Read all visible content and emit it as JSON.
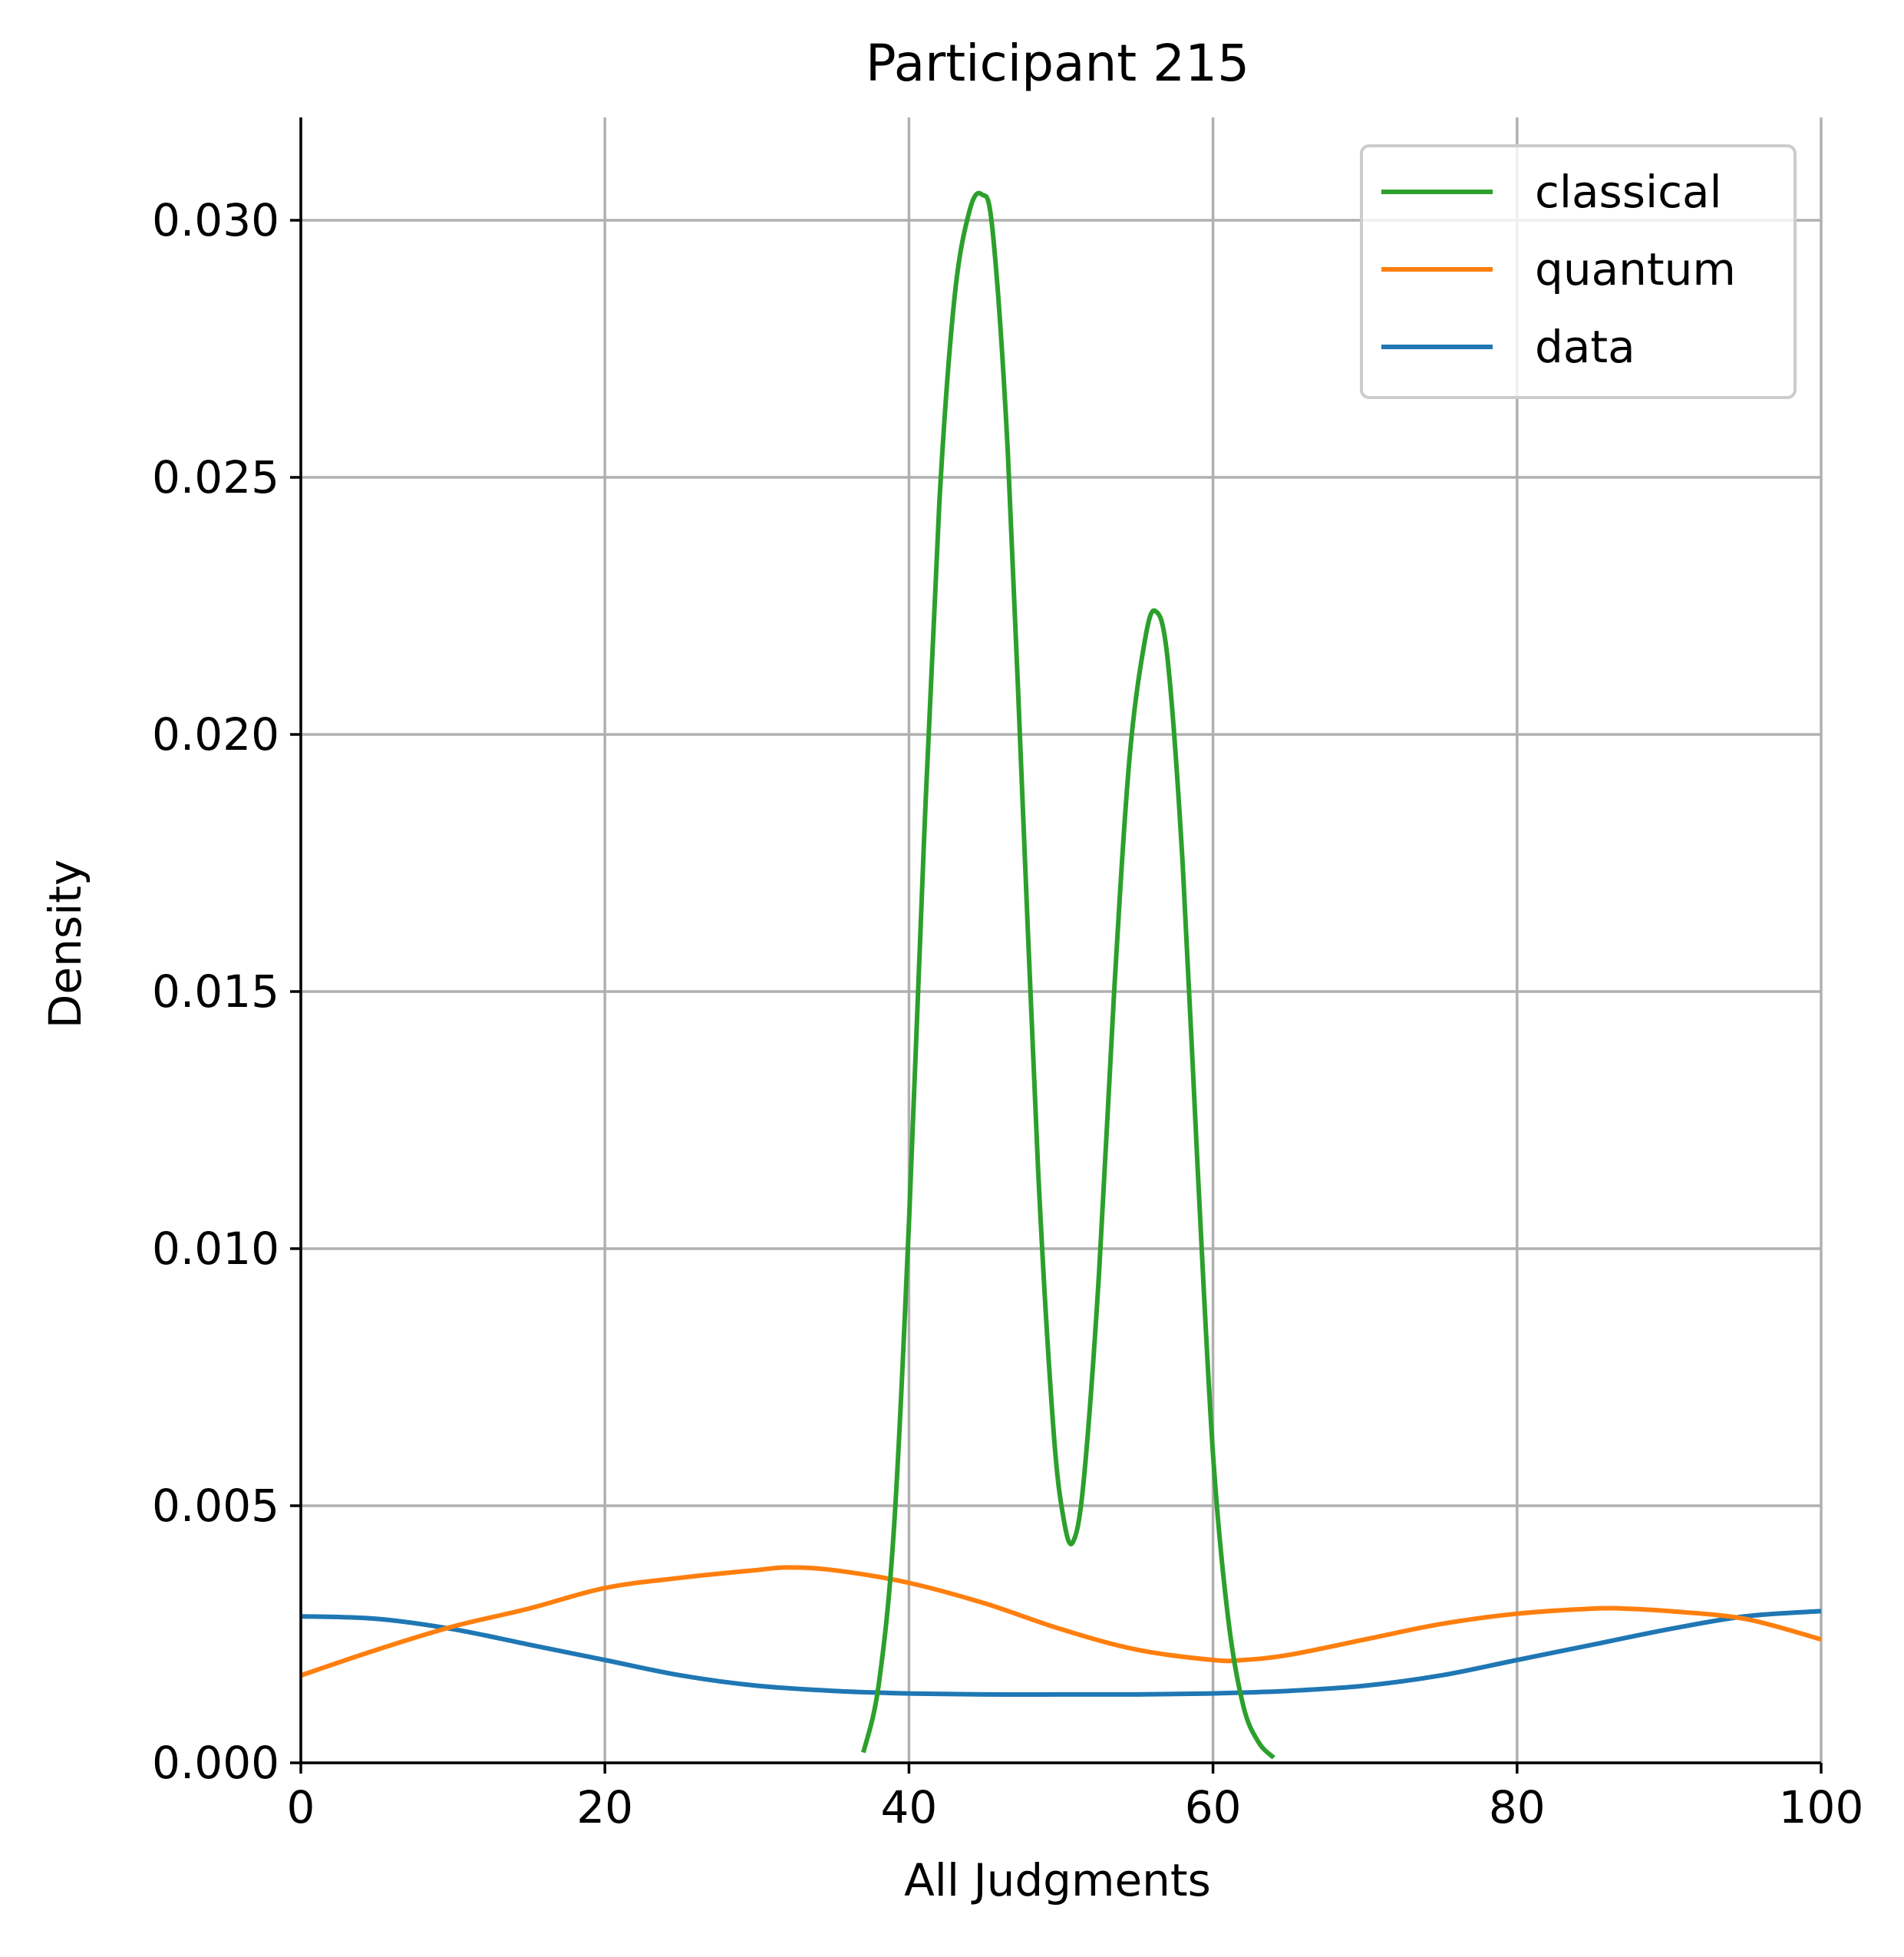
{
  "chart_data": {
    "type": "line",
    "title": "Participant 215",
    "xlabel": "All Judgments",
    "ylabel": "Density",
    "xlim": [
      0,
      100
    ],
    "ylim": [
      0,
      0.032
    ],
    "xticks": [
      0,
      20,
      40,
      60,
      80,
      100
    ],
    "xtick_labels": [
      "0",
      "20",
      "40",
      "60",
      "80",
      "100"
    ],
    "yticks": [
      0,
      0.005,
      0.01,
      0.015,
      0.02,
      0.025,
      0.03
    ],
    "ytick_labels": [
      "0.000",
      "0.005",
      "0.010",
      "0.015",
      "0.020",
      "0.025",
      "0.030"
    ],
    "grid": true,
    "legend_position": "top-right",
    "series": [
      {
        "name": "classical",
        "color": "#2ca02c",
        "x": [
          37.0,
          38.0,
          39.0,
          40.0,
          41.0,
          42.0,
          43.0,
          44.0,
          44.8,
          45.5,
          46.5,
          47.5,
          48.5,
          49.5,
          50.2,
          50.8,
          51.5,
          52.5,
          53.5,
          54.5,
          55.5,
          56.2,
          57.0,
          58.0,
          59.0,
          60.0,
          61.0,
          62.0,
          63.0,
          64.0
        ],
        "y": [
          0.0002,
          0.0015,
          0.0045,
          0.0105,
          0.018,
          0.0245,
          0.0285,
          0.0302,
          0.0305,
          0.0298,
          0.0255,
          0.0185,
          0.0115,
          0.0065,
          0.0047,
          0.0043,
          0.0055,
          0.0095,
          0.015,
          0.0195,
          0.0218,
          0.0224,
          0.0215,
          0.0175,
          0.0115,
          0.006,
          0.0028,
          0.0011,
          0.0004,
          0.0001
        ]
      },
      {
        "name": "quantum",
        "color": "#ff7f0e",
        "x": [
          0,
          5,
          10,
          15,
          20,
          25,
          30,
          32,
          35,
          40,
          45,
          50,
          55,
          60,
          62,
          65,
          70,
          75,
          80,
          85,
          87,
          90,
          95,
          100
        ],
        "y": [
          0.0017,
          0.0022,
          0.00265,
          0.003,
          0.0034,
          0.0036,
          0.00375,
          0.0038,
          0.00375,
          0.0035,
          0.0031,
          0.0026,
          0.0022,
          0.002,
          0.002,
          0.0021,
          0.0024,
          0.0027,
          0.0029,
          0.003,
          0.003,
          0.00295,
          0.0028,
          0.0024
        ]
      },
      {
        "name": "data",
        "color": "#1f77b4",
        "x": [
          0,
          5,
          10,
          15,
          20,
          25,
          30,
          35,
          40,
          45,
          50,
          55,
          60,
          65,
          70,
          75,
          80,
          85,
          90,
          95,
          100
        ],
        "y": [
          0.00285,
          0.0028,
          0.0026,
          0.0023,
          0.002,
          0.0017,
          0.0015,
          0.0014,
          0.00135,
          0.00133,
          0.00133,
          0.00133,
          0.00135,
          0.0014,
          0.0015,
          0.0017,
          0.002,
          0.0023,
          0.0026,
          0.00285,
          0.00295
        ]
      }
    ]
  }
}
